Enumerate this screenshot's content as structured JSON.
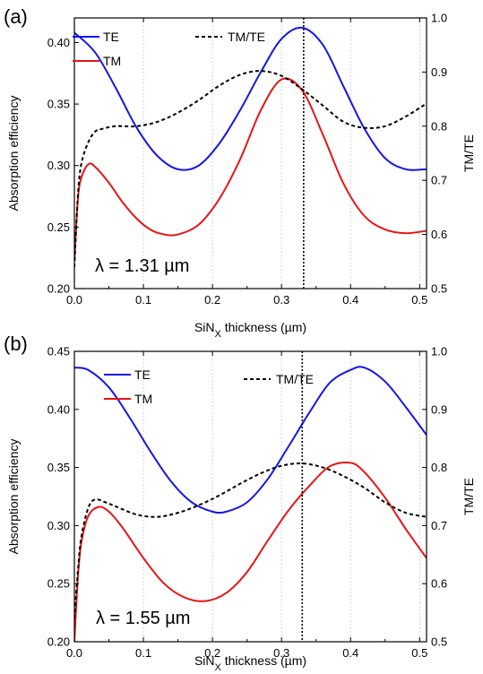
{
  "chart_data": [
    {
      "panel_label": "(a)",
      "type": "line",
      "annotation": "λ = 1.31 µm",
      "xlabel_main": "SiN",
      "xlabel_sub": "X",
      "xlabel_rest": " thickness (µm)",
      "ylabel": "Absorption efficiency",
      "y2label": "TM/TE",
      "xlim": [
        0,
        0.51
      ],
      "ylim": [
        0.2,
        0.42
      ],
      "y2lim": [
        0.5,
        1.0
      ],
      "xticks": [
        "0.0",
        "0.1",
        "0.2",
        "0.3",
        "0.4",
        "0.5"
      ],
      "yticks": [
        "0.20",
        "0.25",
        "0.30",
        "0.35",
        "0.40"
      ],
      "y2ticks": [
        "0.5",
        "0.6",
        "0.7",
        "0.8",
        "0.9",
        "1.0"
      ],
      "marker_x": 0.332,
      "grid": "vertical dotted",
      "legend": [
        "TE",
        "TM",
        "TM/TE"
      ],
      "series": [
        {
          "name": "TE",
          "axis": "left",
          "color": "#1515e6",
          "x": [
            0.0,
            0.03,
            0.06,
            0.09,
            0.12,
            0.15,
            0.18,
            0.21,
            0.24,
            0.27,
            0.3,
            0.33,
            0.36,
            0.39,
            0.42,
            0.45,
            0.48,
            0.51
          ],
          "y": [
            0.408,
            0.392,
            0.363,
            0.331,
            0.308,
            0.297,
            0.3,
            0.318,
            0.345,
            0.376,
            0.403,
            0.412,
            0.398,
            0.364,
            0.33,
            0.306,
            0.297,
            0.297
          ]
        },
        {
          "name": "TM",
          "axis": "left",
          "color": "#e61515",
          "x": [
            0.0,
            0.005,
            0.01,
            0.02,
            0.03,
            0.05,
            0.07,
            0.09,
            0.11,
            0.13,
            0.15,
            0.18,
            0.21,
            0.24,
            0.27,
            0.3,
            0.33,
            0.36,
            0.39,
            0.42,
            0.45,
            0.48,
            0.51
          ],
          "y": [
            0.222,
            0.272,
            0.29,
            0.301,
            0.299,
            0.286,
            0.27,
            0.257,
            0.248,
            0.244,
            0.244,
            0.252,
            0.273,
            0.305,
            0.345,
            0.37,
            0.361,
            0.325,
            0.285,
            0.259,
            0.248,
            0.245,
            0.247
          ]
        },
        {
          "name": "TM/TE",
          "axis": "right",
          "color": "#000000",
          "dash": true,
          "x": [
            0.0,
            0.005,
            0.01,
            0.02,
            0.03,
            0.04,
            0.06,
            0.09,
            0.12,
            0.15,
            0.18,
            0.21,
            0.24,
            0.27,
            0.3,
            0.33,
            0.36,
            0.39,
            0.42,
            0.45,
            0.48,
            0.51
          ],
          "y": [
            0.54,
            0.67,
            0.73,
            0.77,
            0.79,
            0.795,
            0.8,
            0.8,
            0.808,
            0.825,
            0.848,
            0.875,
            0.895,
            0.902,
            0.893,
            0.868,
            0.838,
            0.808,
            0.797,
            0.8,
            0.818,
            0.842
          ]
        }
      ]
    },
    {
      "panel_label": "(b)",
      "type": "line",
      "annotation": "λ = 1.55 µm",
      "xlabel_main": "SiN",
      "xlabel_sub": "X",
      "xlabel_rest": " thickness (µm)",
      "ylabel": "Absorption efficiency",
      "y2label": "TM/TE",
      "xlim": [
        0,
        0.51
      ],
      "ylim": [
        0.2,
        0.45
      ],
      "y2lim": [
        0.5,
        1.0
      ],
      "xticks": [
        "0.0",
        "0.1",
        "0.2",
        "0.3",
        "0.4",
        "0.5"
      ],
      "yticks": [
        "0.20",
        "0.25",
        "0.30",
        "0.35",
        "0.40",
        "0.45"
      ],
      "y2ticks": [
        "0.5",
        "0.6",
        "0.7",
        "0.8",
        "0.9",
        "1.0"
      ],
      "marker_x": 0.33,
      "grid": "vertical dotted",
      "legend": [
        "TE",
        "TM",
        "TM/TE"
      ],
      "series": [
        {
          "name": "TE",
          "axis": "left",
          "color": "#1515e6",
          "x": [
            0.0,
            0.02,
            0.05,
            0.08,
            0.11,
            0.14,
            0.17,
            0.2,
            0.22,
            0.25,
            0.28,
            0.31,
            0.34,
            0.37,
            0.4,
            0.42,
            0.45,
            0.48,
            0.51
          ],
          "y": [
            0.436,
            0.434,
            0.419,
            0.393,
            0.364,
            0.338,
            0.32,
            0.312,
            0.312,
            0.32,
            0.34,
            0.368,
            0.397,
            0.423,
            0.434,
            0.436,
            0.424,
            0.402,
            0.378
          ]
        },
        {
          "name": "TM",
          "axis": "left",
          "color": "#e61515",
          "x": [
            0.0,
            0.005,
            0.01,
            0.02,
            0.035,
            0.05,
            0.07,
            0.1,
            0.13,
            0.16,
            0.19,
            0.22,
            0.25,
            0.28,
            0.31,
            0.34,
            0.37,
            0.4,
            0.42,
            0.45,
            0.48,
            0.51
          ],
          "y": [
            0.2,
            0.255,
            0.285,
            0.308,
            0.316,
            0.312,
            0.298,
            0.272,
            0.25,
            0.238,
            0.235,
            0.242,
            0.26,
            0.287,
            0.313,
            0.334,
            0.351,
            0.354,
            0.346,
            0.324,
            0.297,
            0.272
          ]
        },
        {
          "name": "TM/TE",
          "axis": "right",
          "color": "#000000",
          "dash": true,
          "x": [
            0.0,
            0.005,
            0.01,
            0.02,
            0.03,
            0.045,
            0.06,
            0.09,
            0.12,
            0.15,
            0.18,
            0.21,
            0.24,
            0.27,
            0.3,
            0.33,
            0.36,
            0.39,
            0.42,
            0.45,
            0.48,
            0.51
          ],
          "y": [
            0.54,
            0.62,
            0.68,
            0.73,
            0.745,
            0.74,
            0.733,
            0.719,
            0.715,
            0.722,
            0.735,
            0.752,
            0.772,
            0.79,
            0.803,
            0.807,
            0.8,
            0.785,
            0.765,
            0.74,
            0.722,
            0.715
          ]
        }
      ]
    }
  ]
}
